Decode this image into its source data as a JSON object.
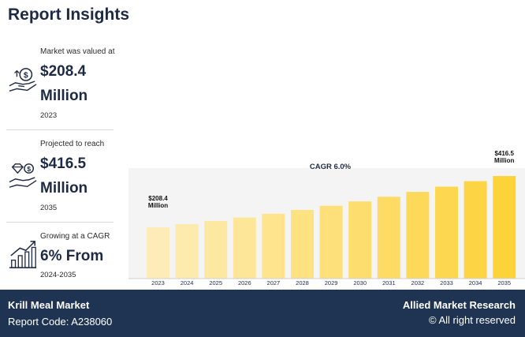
{
  "page": {
    "title": "Report Insights"
  },
  "stats": [
    {
      "label": "Market was valued at",
      "value": "$208.4",
      "unit": "Million",
      "sub": "2023",
      "icon": "money-hand-icon"
    },
    {
      "label": "Projected to reach",
      "value": "$416.5",
      "unit": "Million",
      "sub": "2035",
      "icon": "diamond-dollar-hand-icon"
    },
    {
      "label": "Growing at a CAGR",
      "value": "6% From",
      "unit": "",
      "sub": "2024-2035",
      "icon": "growth-chart-icon"
    }
  ],
  "chart_data": {
    "type": "bar",
    "title": "CAGR 6.0%",
    "categories": [
      "2023",
      "2024",
      "2025",
      "2026",
      "2027",
      "2028",
      "2029",
      "2030",
      "2031",
      "2032",
      "2033",
      "2034",
      "2035"
    ],
    "series": [
      {
        "values": [
          208.4,
          220.9,
          234.2,
          248.2,
          263.1,
          278.9,
          295.6,
          313.4,
          332.2,
          352.1,
          373.2,
          395.6,
          416.5
        ]
      }
    ],
    "annotations": [
      {
        "category": "2023",
        "line1": "$208.4",
        "line2": "Million"
      },
      {
        "category": "2035",
        "line1": "$416.5",
        "line2": "Million"
      }
    ],
    "colors": {
      "start": "#fdecb7",
      "end": "#fdd33a"
    }
  },
  "footer": {
    "market": "Krill Meal Market",
    "report_code": "Report Code: A238060",
    "brand": "Allied Market Research",
    "rights": "© All right reserved"
  }
}
